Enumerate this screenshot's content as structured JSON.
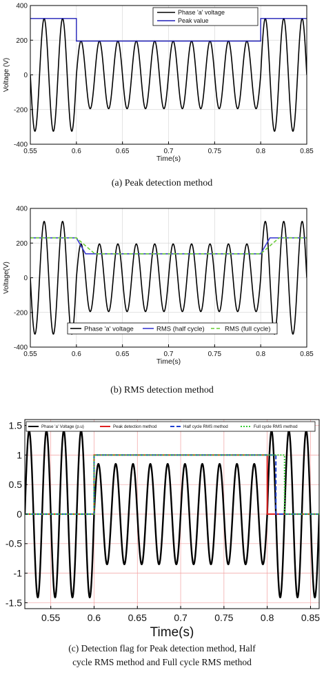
{
  "chart_data": [
    {
      "type": "line",
      "xlabel": "Time(s)",
      "ylabel": "Voltage (V)",
      "xlim": [
        0.55,
        0.85
      ],
      "ylim": [
        -400,
        400
      ],
      "xticks": [
        "0.55",
        "0.6",
        "0.65",
        "0.7",
        "0.75",
        "0.8",
        "0.85"
      ],
      "yticks": [
        "-400",
        "-200",
        "0",
        "200",
        "400"
      ],
      "grid": true,
      "legend_position": "top-center",
      "series": [
        {
          "name": "Phase 'a' voltage",
          "kind": "sine",
          "color": "#000000",
          "freq_hz": 50,
          "segments": [
            {
              "from": 0.55,
              "to": 0.6,
              "amplitude": 325
            },
            {
              "from": 0.6,
              "to": 0.8,
              "amplitude": 195
            },
            {
              "from": 0.8,
              "to": 0.85,
              "amplitude": 325
            }
          ]
        },
        {
          "name": "Peak value",
          "color": "#1f1fb8",
          "x": [
            0.55,
            0.6,
            0.6,
            0.8,
            0.8,
            0.85
          ],
          "y": [
            325,
            325,
            195,
            195,
            325,
            325
          ]
        }
      ]
    },
    {
      "type": "line",
      "xlabel": "Time(s)",
      "ylabel": "Voltage(V)",
      "xlim": [
        0.55,
        0.85
      ],
      "ylim": [
        -400,
        400
      ],
      "xticks": [
        "0.55",
        "0.6",
        "0.65",
        "0.7",
        "0.75",
        "0.8",
        "0.85"
      ],
      "yticks": [
        "-400",
        "-200",
        "0",
        "200",
        "400"
      ],
      "grid": true,
      "legend_position": "bottom-center",
      "series": [
        {
          "name": "Phase 'a' voltage",
          "kind": "sine",
          "color": "#000000",
          "freq_hz": 50,
          "segments": [
            {
              "from": 0.55,
              "to": 0.6,
              "amplitude": 325
            },
            {
              "from": 0.6,
              "to": 0.8,
              "amplitude": 195
            },
            {
              "from": 0.8,
              "to": 0.85,
              "amplitude": 325
            }
          ]
        },
        {
          "name": "RMS (half cycle)",
          "color": "#3a3ad0",
          "dash": "",
          "x": [
            0.55,
            0.6,
            0.61,
            0.8,
            0.81,
            0.85
          ],
          "y": [
            230,
            230,
            138,
            138,
            230,
            230
          ]
        },
        {
          "name": "RMS (full cycle)",
          "color": "#66cc33",
          "dash": "5,3",
          "x": [
            0.55,
            0.6,
            0.62,
            0.8,
            0.82,
            0.85
          ],
          "y": [
            230,
            230,
            138,
            138,
            230,
            230
          ]
        }
      ]
    },
    {
      "type": "line",
      "xlabel": "Time(s)",
      "ylabel": "",
      "xlim": [
        0.52,
        0.86
      ],
      "ylim": [
        -1.6,
        1.6
      ],
      "xticks": [
        "0.55",
        "0.6",
        "0.65",
        "0.7",
        "0.75",
        "0.8",
        "0.85"
      ],
      "yticks": [
        "-1.5",
        "-1",
        "-0.5",
        "0",
        "0.5",
        "1",
        "1.5"
      ],
      "grid": true,
      "legend_position": "top",
      "series": [
        {
          "name": "Phase 'a' Voltage (p.u)",
          "kind": "sine",
          "color": "#000000",
          "freq_hz": 50,
          "segments": [
            {
              "from": 0.52,
              "to": 0.6,
              "amplitude": 1.41
            },
            {
              "from": 0.6,
              "to": 0.8,
              "amplitude": 0.85
            },
            {
              "from": 0.8,
              "to": 0.86,
              "amplitude": 1.41
            }
          ]
        },
        {
          "name": "Peak detection method",
          "color": "#e02020",
          "dash": "",
          "x": [
            0.52,
            0.6,
            0.6,
            0.8,
            0.8,
            0.86
          ],
          "y": [
            0,
            0,
            1,
            1,
            0,
            0
          ]
        },
        {
          "name": "Half cycle RMS method",
          "color": "#2040d0",
          "dash": "6,3",
          "x": [
            0.52,
            0.6,
            0.6,
            0.81,
            0.81,
            0.86
          ],
          "y": [
            0,
            0,
            1,
            1,
            0,
            0
          ]
        },
        {
          "name": "Full cycle RMS method",
          "color": "#33cc33",
          "dash": "2,2",
          "x": [
            0.52,
            0.6,
            0.6,
            0.82,
            0.82,
            0.86
          ],
          "y": [
            0,
            0,
            1,
            1,
            0,
            0
          ]
        }
      ]
    }
  ],
  "captions": {
    "a": "(a) Peak detection method",
    "b": "(b) RMS detection method",
    "c_line1": "(c) Detection flag for Peak detection method, Half",
    "c_line2": "cycle RMS method and Full cycle RMS method"
  }
}
